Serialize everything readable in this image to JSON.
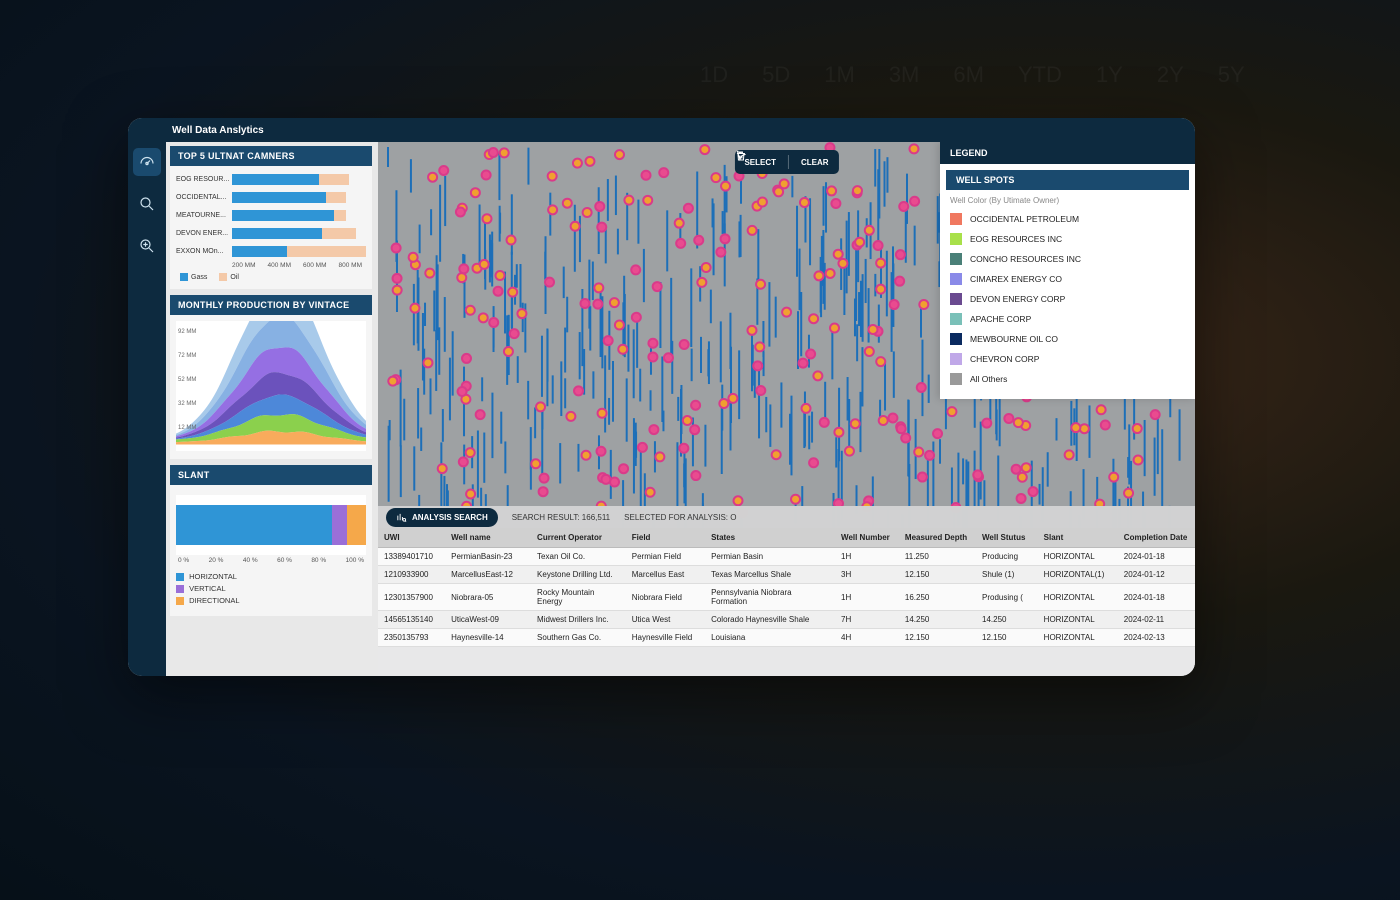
{
  "bg_labels": [
    "1D",
    "5D",
    "1M",
    "3M",
    "6M",
    "YTD",
    "1Y",
    "2Y",
    "5Y"
  ],
  "app_title": "Well Data Anslytics",
  "nav": {
    "items": [
      "dashboard",
      "search",
      "zoom"
    ],
    "active": 0
  },
  "top5": {
    "title": "TOP 5 ULTNAT CAMNERS",
    "type": "stacked-hbar",
    "categories": [
      "EOG RESOUR...",
      "OCCIDENTAL...",
      "MEATOURNE...",
      "DEVON ENER...",
      "EXXON MOn..."
    ],
    "series": [
      {
        "name": "Gass",
        "color": "#2f95d6",
        "values": [
          520,
          560,
          610,
          540,
          330
        ]
      },
      {
        "name": "Oil",
        "color": "#f4c9a8",
        "values": [
          180,
          120,
          70,
          200,
          470
        ]
      }
    ],
    "xmax": 800,
    "xticks": [
      "200 MM",
      "400 MM",
      "600 MM",
      "800 MM"
    ],
    "bg": "#f5f5f5"
  },
  "monthly": {
    "title": "MONTHLY PRODUCTION BY VINTACE",
    "type": "stacked-area",
    "yticks": [
      "92 MM",
      "72 MM",
      "52 MM",
      "32 MM",
      "12 MM"
    ],
    "ylim": [
      0,
      95
    ],
    "colors": [
      "#f7a24a",
      "#7ecb3a",
      "#3a7bd5",
      "#5b3fb5",
      "#8a5fe0",
      "#7aa8e0",
      "#9fc4e8"
    ],
    "bg": "#ffffff"
  },
  "slant": {
    "title": "SLANT",
    "type": "stacked-hbar-single",
    "segments": [
      {
        "name": "HORIZONTAL",
        "color": "#2f95d6",
        "pct": 82
      },
      {
        "name": "VERTICAL",
        "color": "#9a6fd8",
        "pct": 8
      },
      {
        "name": "DIRECTIONAL",
        "color": "#f5a84a",
        "pct": 10
      }
    ],
    "xticks": [
      "0 %",
      "20 %",
      "40 %",
      "60 %",
      "80 %",
      "100 %"
    ]
  },
  "map": {
    "select_label": "SELECT",
    "clear_label": "CLEAR",
    "well_line_color": "#1d6fb8",
    "spot_colors": {
      "ring": "#d93b8a",
      "fill": "#f0a030",
      "alt_fill": "#e94b8f"
    },
    "bg": "#9ea1a3"
  },
  "legend": {
    "title": "LEGEND",
    "subtitle": "WELL SPOTS",
    "note": "Well Color (By Utimate Owner)",
    "items": [
      {
        "label": "OCCIDENTAL PETROLEUM",
        "color": "#f07860"
      },
      {
        "label": "EOG RESOURCES INC",
        "color": "#a8e04a"
      },
      {
        "label": "CONCHO RESOURCES INC",
        "color": "#4a8078"
      },
      {
        "label": "CIMAREX ENERGY CO",
        "color": "#8a8ae8"
      },
      {
        "label": "DEVON ENERGY CORP",
        "color": "#6a4a90"
      },
      {
        "label": "APACHE CORP",
        "color": "#7ac0b8"
      },
      {
        "label": "MEWBOURNE OIL CO",
        "color": "#0a2a60"
      },
      {
        "label": "CHEVRON CORP",
        "color": "#c0a8e8"
      },
      {
        "label": "All Others",
        "color": "#9a9a9a"
      }
    ]
  },
  "results": {
    "analysis_btn": "ANALYSIS SEARCH",
    "search_result_lbl": "SEARCH RESULT: 166,511",
    "selected_lbl": "SELECTED FOR ANALYSIS: O",
    "columns": [
      "UWI",
      "Well name",
      "Current Operator",
      "Field",
      "States",
      "Well Number",
      "Measured Depth",
      "Well Stutus",
      "Slant",
      "Completion Date"
    ],
    "col_widths": [
      "46px",
      "78px",
      "86px",
      "72px",
      "118px",
      "58px",
      "70px",
      "56px",
      "70px",
      "70px"
    ],
    "rows": [
      [
        "13389401710",
        "PermianBasin-23",
        "Texan Oil Co.",
        "Permian Field",
        "Permian Basin",
        "1H",
        "11.250",
        "Producing",
        "HORIZONTAL",
        "2024-01-18"
      ],
      [
        "1210933900",
        "MarcellusEast-12",
        "Keystone Drilling Ltd.",
        "Marcellus East",
        "Texas Marcellus Shale",
        "3H",
        "12.150",
        "Shule (1)",
        "HORIZONTAL(1)",
        "2024-01-12"
      ],
      [
        "12301357900",
        "Niobrara-05",
        "Rocky Mountain Energy",
        "Niobrara Field",
        "Pennsylvania Niobrara Formation",
        "1H",
        "16.250",
        "Produsing (",
        "HORIZONTAL",
        "2024-01-18"
      ],
      [
        "14565135140",
        "UticaWest-09",
        "Midwest Drillers Inc.",
        "Utica West",
        "Colorado Haynesville Shale",
        "7H",
        "14.250",
        "14.250",
        "HORIZONTAL",
        "2024-02-11"
      ],
      [
        "2350135793",
        "Haynesville-14",
        "Southern Gas Co.",
        "Haynesville Field",
        "Louisiana",
        "4H",
        "12.150",
        "12.150",
        "HORIZONTAL",
        "2024-02-13"
      ]
    ]
  }
}
